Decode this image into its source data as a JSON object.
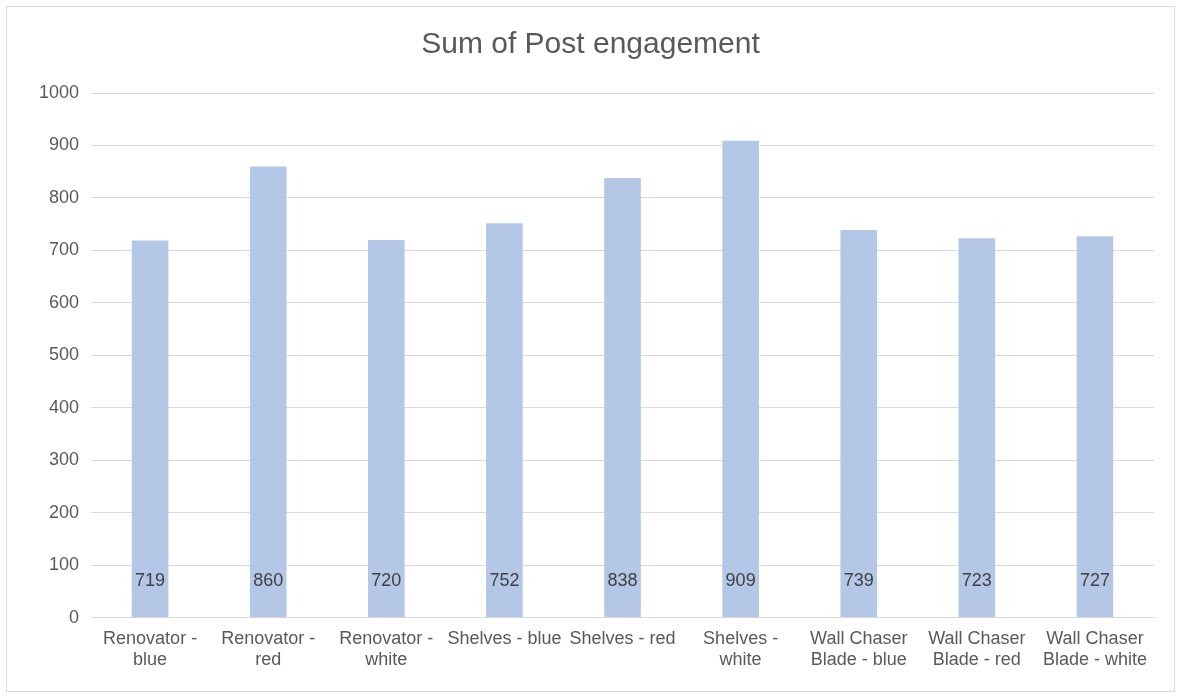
{
  "chart_data": {
    "type": "bar",
    "title": "Sum of Post engagement",
    "categories": [
      "Renovator - blue",
      "Renovator - red",
      "Renovator - white",
      "Shelves - blue",
      "Shelves - red",
      "Shelves - white",
      "Wall Chaser Blade - blue",
      "Wall Chaser Blade - red",
      "Wall Chaser Blade - white"
    ],
    "values": [
      719,
      860,
      720,
      752,
      838,
      909,
      739,
      723,
      727
    ],
    "color": "#b4c7e7",
    "ylim": [
      0,
      1000
    ],
    "yticks": [
      0,
      100,
      200,
      300,
      400,
      500,
      600,
      700,
      800,
      900,
      1000
    ],
    "grid": "y",
    "data_labels": true,
    "legend": false
  }
}
